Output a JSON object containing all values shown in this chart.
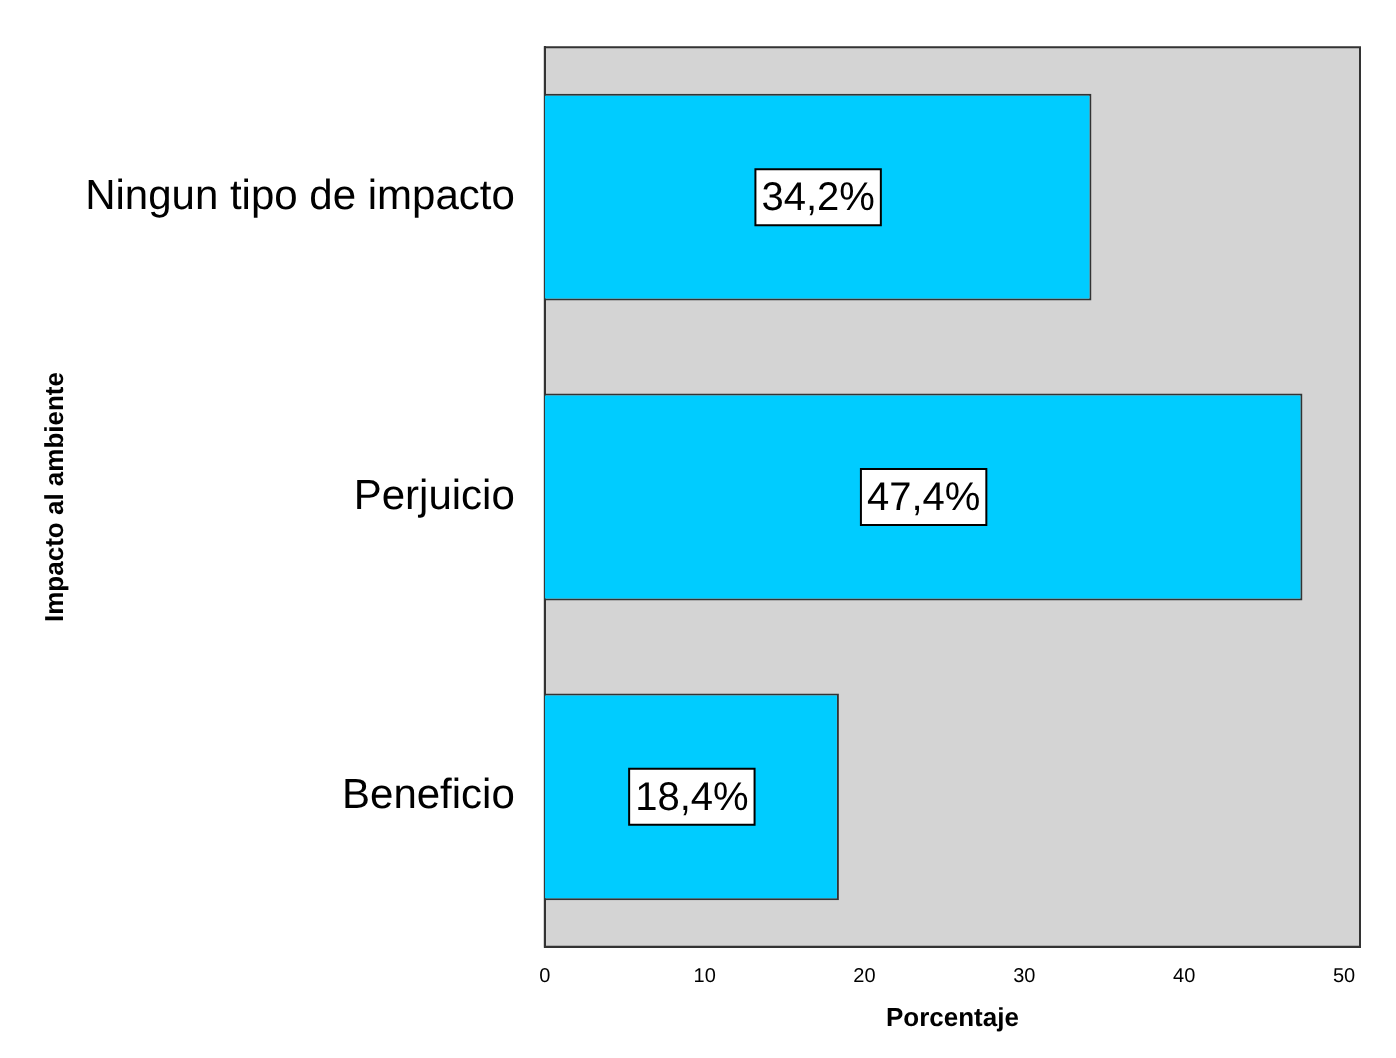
{
  "chart_data": {
    "type": "bar",
    "orientation": "horizontal",
    "xlabel": "Porcentaje",
    "ylabel": "Impacto al ambiente",
    "categories": [
      "Ningun tipo de impacto",
      "Perjuicio",
      "Beneficio"
    ],
    "values": [
      34.2,
      47.4,
      18.4
    ],
    "color": "#00ccff",
    "value_labels": [
      "34,2%",
      "47,4%",
      "18,4%"
    ],
    "xlim": [
      0,
      51
    ],
    "xticks": [
      0,
      10,
      20,
      30,
      40,
      50
    ],
    "grid": false,
    "legend": false
  }
}
